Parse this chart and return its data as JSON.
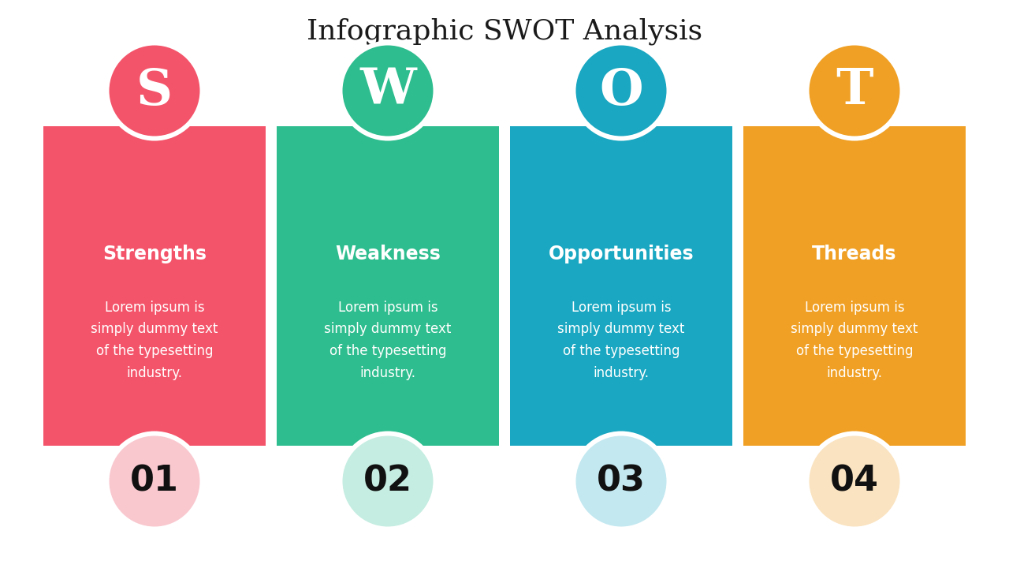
{
  "title": "Infographic SWOT Analysis",
  "title_fontsize": 26,
  "background_color": "#ffffff",
  "sections": [
    {
      "letter": "S",
      "heading": "Strengths",
      "body": "Lorem ipsum is\nsimply dummy text\nof the typesetting\nindustry.",
      "number": "01",
      "box_color": "#F4546A",
      "circle_top_color": "#F4546A",
      "circle_bottom_color": "#F9C8CF",
      "text_color": "#ffffff"
    },
    {
      "letter": "W",
      "heading": "Weakness",
      "body": "Lorem ipsum is\nsimply dummy text\nof the typesetting\nindustry.",
      "number": "02",
      "box_color": "#2EBD8E",
      "circle_top_color": "#2EBD8E",
      "circle_bottom_color": "#C5EDE1",
      "text_color": "#ffffff"
    },
    {
      "letter": "O",
      "heading": "Opportunities",
      "body": "Lorem ipsum is\nsimply dummy text\nof the typesetting\nindustry.",
      "number": "03",
      "box_color": "#19A7C1",
      "circle_top_color": "#19A7C1",
      "circle_bottom_color": "#C3E8F0",
      "text_color": "#ffffff"
    },
    {
      "letter": "T",
      "heading": "Threads",
      "body": "Lorem ipsum is\nsimply dummy text\nof the typesetting\nindustry.",
      "number": "04",
      "box_color": "#F0A024",
      "circle_top_color": "#F0A024",
      "circle_bottom_color": "#FAE3C0",
      "text_color": "#ffffff"
    }
  ]
}
